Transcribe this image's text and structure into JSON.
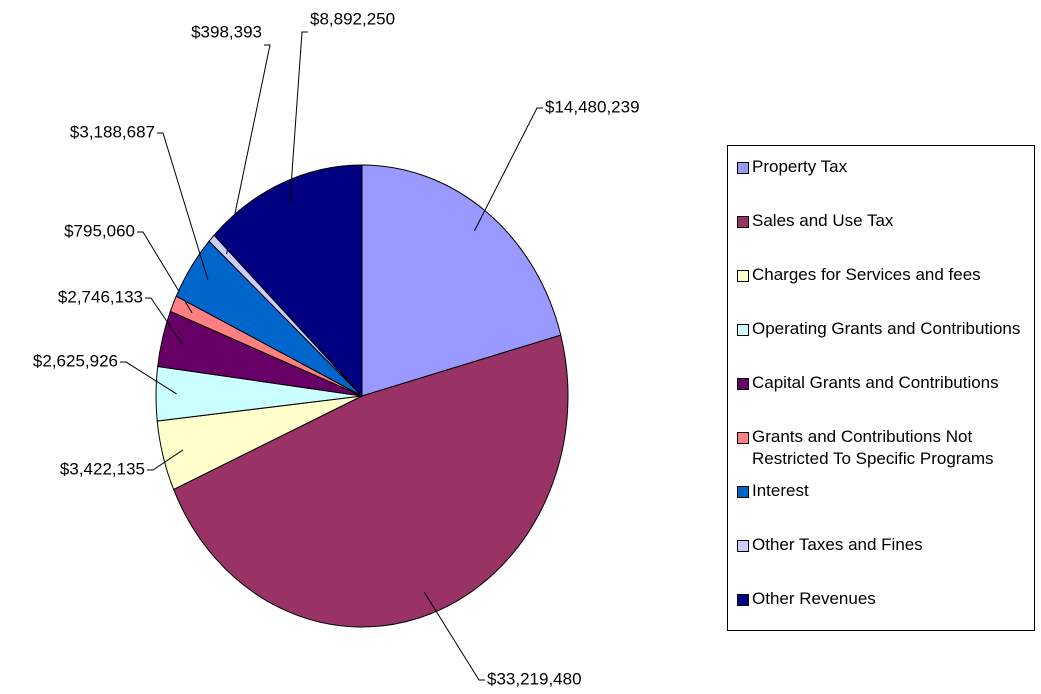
{
  "chart_data": {
    "type": "pie",
    "categories": [
      "Property Tax",
      "Sales and Use Tax",
      "Charges for Services and fees",
      "Operating Grants and Contributions",
      "Capital Grants and Contributions",
      "Grants and Contributions Not Restricted To Specific Programs",
      "Interest",
      "Other Taxes and Fines",
      "Other Revenues"
    ],
    "values": [
      14480239,
      33219480,
      3422135,
      2625926,
      2746133,
      795060,
      3188687,
      398393,
      8892250
    ],
    "value_labels": [
      "$14,480,239",
      "$33,219,480",
      "$3,422,135",
      "$2,625,926",
      "$2,746,133",
      "$795,060",
      "$3,188,687",
      "$398,393",
      "$8,892,250"
    ],
    "colors": [
      "#9999ff",
      "#993366",
      "#ffffcc",
      "#ccffff",
      "#660066",
      "#ff8080",
      "#0066cc",
      "#ccccff",
      "#000080"
    ],
    "legend": "right"
  }
}
